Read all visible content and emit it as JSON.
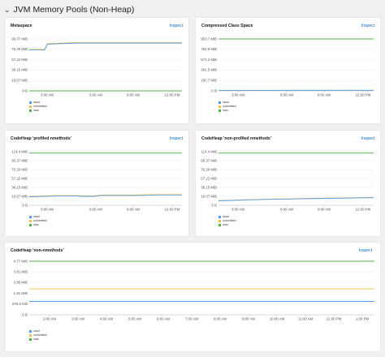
{
  "section": {
    "title": "JVM Memory Pools (Non-Heap)",
    "icon": "chevron-down-icon"
  },
  "inspect_label": "Inspect",
  "legend": {
    "used": "used",
    "committed": "committed",
    "max": "max"
  },
  "colors": {
    "used": "#519de9",
    "committed": "#f4c145",
    "max": "#4cb140",
    "inspect": "#0066cc"
  },
  "charts": [
    {
      "title": "Metaspace",
      "chart_data": {
        "type": "line",
        "title": "Metaspace",
        "ylabels": [
          "95.37 MiB",
          "76.29 MiB",
          "57.22 MiB",
          "38.15 MiB",
          "19.07 MiB",
          "0 B"
        ],
        "xlabels": [
          "3:00 AM",
          "6:00 AM",
          "9:00 AM",
          "12:00 PM"
        ],
        "series": [
          {
            "name": "used",
            "points": [
              [
                0,
                79
              ],
              [
                0.1,
                79
              ],
              [
                0.12,
                90
              ],
              [
                0.3,
                92
              ],
              [
                1,
                92
              ]
            ]
          },
          {
            "name": "committed",
            "points": [
              [
                0,
                80
              ],
              [
                0.1,
                80
              ],
              [
                0.12,
                91
              ],
              [
                0.3,
                93
              ],
              [
                1,
                93
              ]
            ]
          },
          {
            "name": "max",
            "points": [
              [
                0,
                0
              ],
              [
                1,
                0
              ]
            ]
          }
        ]
      }
    },
    {
      "title": "Compressed Class Space",
      "chart_data": {
        "type": "line",
        "title": "Compressed Class Space",
        "ylabels": [
          "953.7 MiB",
          "762.9 MiB",
          "572.2 MiB",
          "381.5 MiB",
          "190.7 MiB",
          "0 B"
        ],
        "xlabels": [
          "3:00 AM",
          "6:00 AM",
          "9:00 AM",
          "12:00 PM"
        ],
        "series": [
          {
            "name": "used",
            "points": [
              [
                0,
                9
              ],
              [
                1,
                10
              ]
            ]
          },
          {
            "name": "committed",
            "points": [
              [
                0,
                10
              ],
              [
                1,
                11
              ]
            ]
          },
          {
            "name": "max",
            "points": [
              [
                0,
                1024
              ],
              [
                1,
                1024
              ]
            ]
          }
        ]
      }
    },
    {
      "title": "CodeHeap 'profiled nmethods'",
      "chart_data": {
        "type": "line",
        "title": "CodeHeap 'profiled nmethods'",
        "ylabels": [
          "114.4 MiB",
          "95.37 MiB",
          "76.29 MiB",
          "57.22 MiB",
          "38.15 MiB",
          "19.07 MiB",
          "0 B"
        ],
        "xlabels": [
          "3:00 AM",
          "6:00 AM",
          "9:00 AM",
          "12:00 PM"
        ],
        "series": [
          {
            "name": "used",
            "points": [
              [
                0,
                19
              ],
              [
                0.2,
                21
              ],
              [
                0.3,
                21
              ],
              [
                0.35,
                20
              ],
              [
                0.42,
                20
              ],
              [
                0.47,
                22
              ],
              [
                0.7,
                22
              ],
              [
                0.85,
                23
              ],
              [
                1,
                23
              ]
            ]
          },
          {
            "name": "committed",
            "points": [
              [
                0,
                20
              ],
              [
                0.2,
                22
              ],
              [
                0.3,
                22
              ],
              [
                0.35,
                21
              ],
              [
                0.42,
                21
              ],
              [
                0.47,
                23
              ],
              [
                0.7,
                23
              ],
              [
                0.85,
                24
              ],
              [
                1,
                24
              ]
            ]
          },
          {
            "name": "max",
            "points": [
              [
                0,
                117
              ],
              [
                1,
                117
              ]
            ]
          }
        ]
      }
    },
    {
      "title": "CodeHeap 'non-profiled nmethods'",
      "chart_data": {
        "type": "line",
        "title": "CodeHeap 'non-profiled nmethods'",
        "ylabels": [
          "114.4 MiB",
          "95.37 MiB",
          "76.29 MiB",
          "57.22 MiB",
          "38.15 MiB",
          "19.07 MiB",
          "0 B"
        ],
        "xlabels": [
          "3:00 AM",
          "6:00 AM",
          "9:00 AM",
          "12:00 PM"
        ],
        "series": [
          {
            "name": "used",
            "points": [
              [
                0,
                10
              ],
              [
                0.3,
                13
              ],
              [
                0.6,
                15
              ],
              [
                1,
                17
              ]
            ]
          },
          {
            "name": "committed",
            "points": [
              [
                0,
                10.5
              ],
              [
                0.3,
                13.5
              ],
              [
                0.6,
                15.5
              ],
              [
                1,
                17.5
              ]
            ]
          },
          {
            "name": "max",
            "points": [
              [
                0,
                117
              ],
              [
                1,
                117
              ]
            ]
          }
        ]
      }
    },
    {
      "title": "CodeHeap 'non-nmethods'",
      "chart_data": {
        "type": "line",
        "title": "CodeHeap 'non-nmethods'",
        "ylabels": [
          "4.77 MiB",
          "3.81 MiB",
          "2.86 MiB",
          "1.91 MiB",
          "976.6 KiB",
          "0 B"
        ],
        "xlabels": [
          "2:00 AM",
          "3:00 AM",
          "4:00 AM",
          "5:00 AM",
          "6:00 AM",
          "7:00 AM",
          "8:00 AM",
          "9:00 AM",
          "10:00 AM",
          "11:00 AM",
          "12:00 PM",
          "1:00 PM"
        ],
        "series": [
          {
            "name": "used",
            "points": [
              [
                0,
                1.25
              ],
              [
                1,
                1.25
              ]
            ]
          },
          {
            "name": "committed",
            "points": [
              [
                0,
                2.42
              ],
              [
                1,
                2.42
              ]
            ]
          },
          {
            "name": "max",
            "points": [
              [
                0,
                5.5
              ],
              [
                1,
                5.5
              ]
            ]
          }
        ]
      }
    }
  ]
}
